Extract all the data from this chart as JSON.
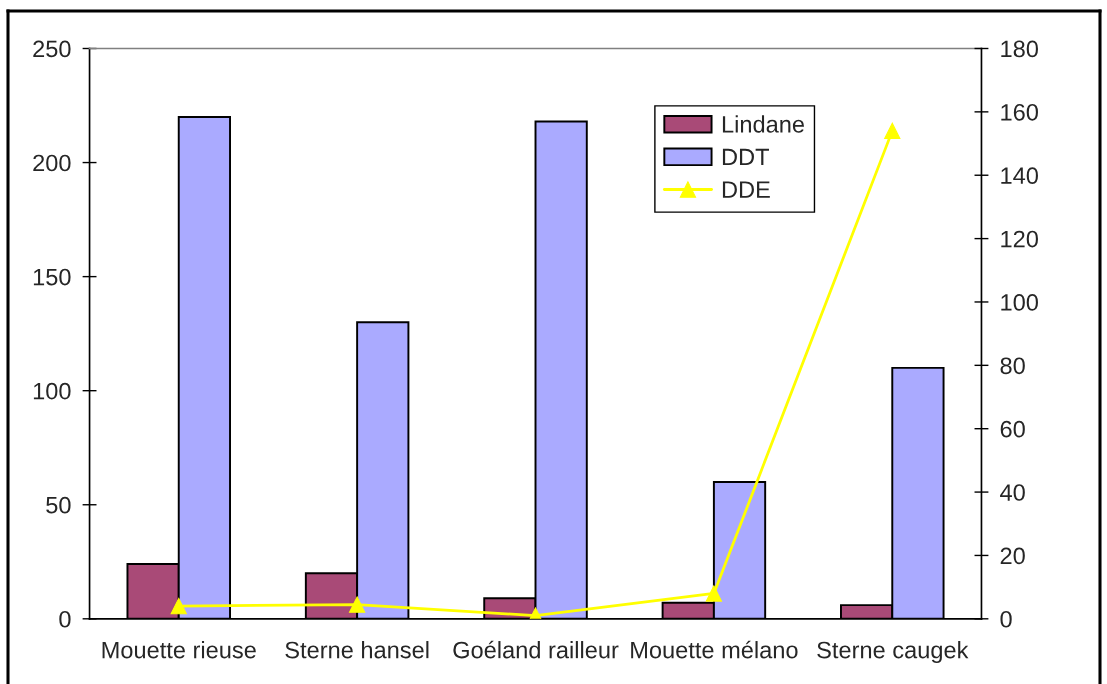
{
  "chart_data": {
    "type": "bar",
    "categories": [
      "Mouette rieuse",
      "Sterne hansel",
      "Goéland railleur",
      "Mouette mélano",
      "Sterne caugek"
    ],
    "series": [
      {
        "name": "Lindane",
        "color": "#a94a77",
        "values": [
          24,
          20,
          9,
          7,
          6
        ]
      },
      {
        "name": "DDT",
        "color": "#aaaaff",
        "values": [
          220,
          130,
          218,
          60,
          110
        ]
      },
      {
        "name": "DDE",
        "type": "line",
        "axis": "y2",
        "color": "#ffff00",
        "marker": "triangle",
        "values": [
          4,
          4.5,
          1,
          8,
          154
        ]
      }
    ],
    "ylim": [
      0,
      250
    ],
    "yticks": [
      0,
      50,
      100,
      150,
      200,
      250
    ],
    "y2lim": [
      0,
      180
    ],
    "y2ticks": [
      0,
      20,
      40,
      60,
      80,
      100,
      120,
      140,
      160,
      180
    ],
    "legend": "top right"
  }
}
